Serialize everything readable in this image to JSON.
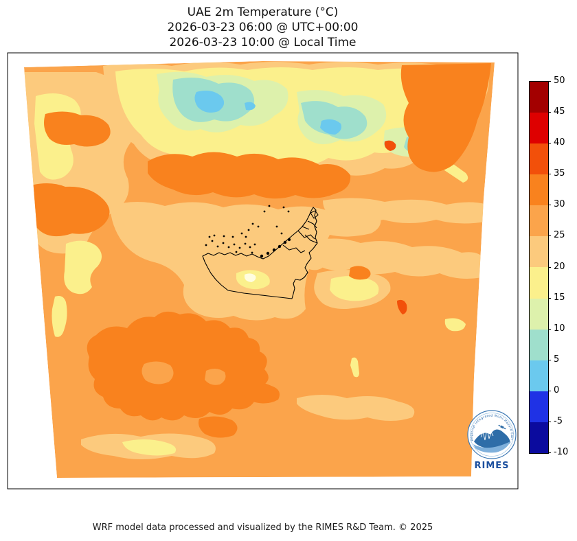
{
  "title": {
    "line1": "UAE 2m Temperature (°C)",
    "line2": "2026-03-23 06:00 @ UTC+00:00",
    "line3": "2026-03-23 10:00 @ Local Time"
  },
  "footer": {
    "credit": "WRF model data processed and visualized by the RIMES R&D Team. © 2025"
  },
  "colorbar": {
    "orientation": "vertical",
    "position": "right",
    "ticks": [
      "50",
      "45",
      "40",
      "35",
      "30",
      "25",
      "20",
      "15",
      "10",
      "5",
      "0",
      "-5",
      "-10"
    ],
    "segments": [
      {
        "min": 45,
        "max": 50,
        "color": "#A30000"
      },
      {
        "min": 40,
        "max": 45,
        "color": "#DE0000"
      },
      {
        "min": 35,
        "max": 40,
        "color": "#F2500A"
      },
      {
        "min": 30,
        "max": 35,
        "color": "#F9821E"
      },
      {
        "min": 25,
        "max": 30,
        "color": "#FBA44B"
      },
      {
        "min": 20,
        "max": 25,
        "color": "#FCCA7D"
      },
      {
        "min": 15,
        "max": 20,
        "color": "#FBF08C"
      },
      {
        "min": 10,
        "max": 15,
        "color": "#DDF1AC"
      },
      {
        "min": 5,
        "max": 10,
        "color": "#9FDFCC"
      },
      {
        "min": 0,
        "max": 5,
        "color": "#6BC9EE"
      },
      {
        "min": -5,
        "max": 0,
        "color": "#1F32E5"
      },
      {
        "min": -10,
        "max": -5,
        "color": "#0B0B9E"
      }
    ]
  },
  "map": {
    "outside_color": "#FFFFFF",
    "border_color": "#000000",
    "country_outline": "United Arab Emirates",
    "level_colors": {
      "p0_5": "#6BC9EE",
      "p5_10": "#9FDFCC",
      "p10_15": "#DDF1AC",
      "p15_20": "#FBF08C",
      "p20_25": "#FCCA7D",
      "p25_30": "#FBA44B",
      "p30_35": "#F9821E",
      "p35_40": "#F2500A",
      "cream_highlight": "#FFFDE0"
    }
  },
  "logo": {
    "org": "RIMES",
    "motto": "Regional Integrated Multi-Hazard Early Warning System",
    "ring_color": "#3C78B4",
    "text_color": "#1C4F9E"
  },
  "chart_data": {
    "type": "heatmap",
    "title": "UAE 2m Temperature (°C)",
    "subtitle_utc": "2026-03-23 06:00 @ UTC+00:00",
    "subtitle_local": "2026-03-23 10:00 @ Local Time",
    "units": "°C",
    "legend_position": "right colorbar",
    "colorbar_ticks": [
      -10,
      -5,
      0,
      5,
      10,
      15,
      20,
      25,
      30,
      35,
      40,
      45,
      50
    ],
    "bin_size_c": 5,
    "value_range": [
      -10,
      50
    ],
    "domain_shape": "trapezoid (curvilinear WRF projection), white outside",
    "palette_low_to_high": [
      "#0B0B9E",
      "#1F32E5",
      "#6BC9EE",
      "#9FDFCC",
      "#DDF1AC",
      "#FBF08C",
      "#FCCA7D",
      "#FBA44B",
      "#F9821E",
      "#F2500A",
      "#DE0000",
      "#A30000"
    ],
    "field_summary": [
      {
        "area": "northern mountain cores (top-centre of domain)",
        "approx_temp_c": "0–10"
      },
      {
        "area": "northern mountain band / foothills",
        "approx_temp_c": "10–20"
      },
      {
        "area": "upper-left plains, patches along north band",
        "approx_temp_c": "15–20"
      },
      {
        "area": "broad band across middle incl. UAE coast and Gulf shoreline",
        "approx_temp_c": "20–25"
      },
      {
        "area": "dominant background over central and southern desert",
        "approx_temp_c": "25–30"
      },
      {
        "area": "large south-western desert blobs, left-edge and north-east patches",
        "approx_temp_c": "30–35"
      },
      {
        "area": "two small hot spots (north-east quadrant and east of UAE border)",
        "approx_temp_c": "35–40"
      },
      {
        "area": "UAE interior pale patch (Liwa area) with cream core",
        "approx_temp_c": "15–20"
      }
    ]
  }
}
